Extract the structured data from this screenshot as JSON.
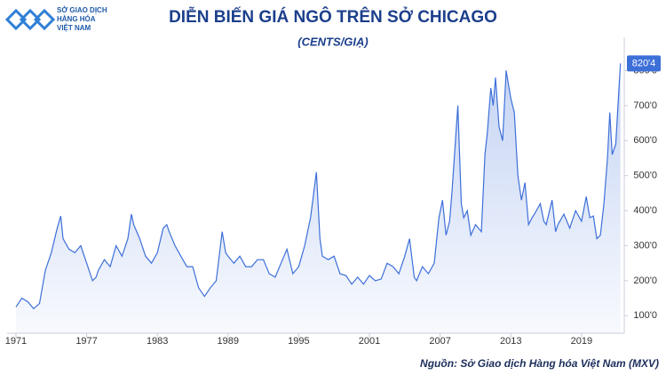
{
  "logo": {
    "lines": [
      "SỞ GIAO DỊCH",
      "HÀNG HÓA",
      "VIỆT NAM"
    ]
  },
  "chart_data": {
    "type": "area",
    "title": "DIỄN BIẾN GIÁ NGÔ TRÊN SỞ CHICAGO",
    "subtitle": "(CENTS/GIẠ)",
    "source": "Nguồn: Sở Giao dịch Hàng hóa Việt Nam (MXV)",
    "color": "#3d6fd9",
    "x": [
      1971.0,
      1971.5,
      1972.0,
      1972.5,
      1973.0,
      1973.5,
      1974.0,
      1974.5,
      1974.8,
      1975.0,
      1975.5,
      1976.0,
      1976.5,
      1977.0,
      1977.5,
      1977.8,
      1978.0,
      1978.5,
      1979.0,
      1979.5,
      1980.0,
      1980.5,
      1980.8,
      1981.0,
      1981.5,
      1982.0,
      1982.5,
      1983.0,
      1983.5,
      1983.8,
      1984.0,
      1984.5,
      1985.0,
      1985.5,
      1986.0,
      1986.5,
      1987.0,
      1987.5,
      1988.0,
      1988.5,
      1988.8,
      1989.0,
      1989.5,
      1990.0,
      1990.5,
      1991.0,
      1991.5,
      1992.0,
      1992.5,
      1993.0,
      1993.5,
      1994.0,
      1994.5,
      1995.0,
      1995.5,
      1996.0,
      1996.5,
      1996.8,
      1997.0,
      1997.5,
      1998.0,
      1998.5,
      1999.0,
      1999.5,
      2000.0,
      2000.5,
      2001.0,
      2001.5,
      2002.0,
      2002.5,
      2003.0,
      2003.5,
      2004.0,
      2004.4,
      2004.8,
      2005.0,
      2005.5,
      2006.0,
      2006.5,
      2006.9,
      2007.2,
      2007.5,
      2007.8,
      2008.0,
      2008.3,
      2008.5,
      2008.8,
      2009.0,
      2009.3,
      2009.6,
      2010.0,
      2010.5,
      2010.8,
      2011.0,
      2011.3,
      2011.5,
      2011.7,
      2012.0,
      2012.3,
      2012.6,
      2012.8,
      2013.0,
      2013.3,
      2013.6,
      2013.9,
      2014.2,
      2014.5,
      2014.8,
      2015.0,
      2015.5,
      2015.8,
      2016.0,
      2016.5,
      2016.8,
      2017.0,
      2017.5,
      2018.0,
      2018.5,
      2019.0,
      2019.4,
      2019.7,
      2020.0,
      2020.3,
      2020.6,
      2020.9,
      2021.2,
      2021.4,
      2021.6,
      2021.9,
      2022.2,
      2022.3
    ],
    "values": [
      125,
      150,
      140,
      120,
      135,
      230,
      280,
      350,
      385,
      320,
      290,
      280,
      300,
      250,
      200,
      210,
      230,
      260,
      240,
      300,
      270,
      320,
      390,
      360,
      320,
      270,
      250,
      280,
      350,
      360,
      340,
      300,
      270,
      240,
      240,
      180,
      155,
      180,
      200,
      340,
      280,
      270,
      250,
      270,
      240,
      240,
      260,
      260,
      220,
      210,
      250,
      290,
      220,
      240,
      300,
      380,
      510,
      320,
      270,
      260,
      270,
      220,
      215,
      190,
      210,
      190,
      215,
      200,
      205,
      250,
      240,
      220,
      270,
      320,
      210,
      200,
      240,
      220,
      250,
      380,
      430,
      330,
      370,
      450,
      600,
      700,
      420,
      380,
      400,
      330,
      360,
      340,
      560,
      620,
      750,
      700,
      780,
      640,
      600,
      800,
      760,
      720,
      680,
      500,
      430,
      480,
      360,
      380,
      390,
      420,
      370,
      360,
      430,
      340,
      360,
      390,
      350,
      400,
      370,
      440,
      380,
      385,
      320,
      330,
      420,
      550,
      680,
      560,
      590,
      760,
      820.4
    ],
    "value_labels": [
      null,
      null,
      null,
      null,
      null,
      null,
      null,
      null,
      null,
      null,
      null,
      null,
      null,
      null,
      null,
      null,
      null,
      null,
      null,
      null,
      null,
      null,
      null,
      null,
      null,
      null,
      null,
      null,
      null,
      null,
      null,
      null,
      null,
      null,
      null,
      null,
      null,
      null,
      null,
      null,
      null,
      null,
      null,
      null,
      null,
      null,
      null,
      null,
      null,
      null,
      null,
      null,
      null,
      null,
      null,
      null,
      null,
      null,
      null,
      null,
      null,
      null,
      null,
      null,
      null,
      null,
      null,
      null,
      null,
      null,
      null,
      null,
      null,
      null,
      null,
      null,
      null,
      null,
      null,
      null,
      null,
      null,
      null,
      null,
      null,
      null,
      null,
      null,
      null,
      null,
      null,
      null,
      null,
      null,
      null,
      null,
      null,
      null,
      null,
      null,
      null,
      null,
      null,
      null,
      null,
      null,
      null,
      null,
      null,
      null,
      null,
      null,
      null,
      null,
      null,
      null,
      null,
      null,
      null,
      null,
      null,
      null,
      null,
      null,
      null,
      null,
      null,
      null,
      null,
      null,
      "820'4"
    ],
    "xlim": [
      1970.25,
      2022.4
    ],
    "xticks": [
      1971,
      1977,
      1983,
      1989,
      1995,
      2001,
      2007,
      2013,
      2019
    ],
    "ylim": [
      50,
      895
    ],
    "yticks": [
      {
        "value": 100,
        "label": "100'0"
      },
      {
        "value": 200,
        "label": "200'0"
      },
      {
        "value": 300,
        "label": "300'0"
      },
      {
        "value": 400,
        "label": "400'0"
      },
      {
        "value": 500,
        "label": "500'0"
      },
      {
        "value": 600,
        "label": "600'0"
      },
      {
        "value": 700,
        "label": "700'0"
      },
      {
        "value": 800,
        "label": "800'0"
      }
    ],
    "grid": false
  }
}
